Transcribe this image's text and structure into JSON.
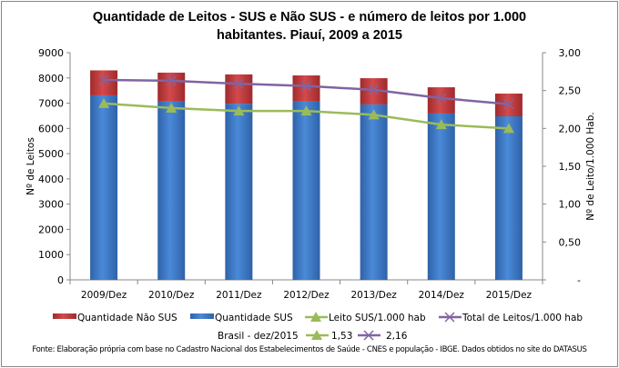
{
  "chart_data": {
    "type": "bar+line",
    "title": "Quantidade de Leitos - SUS e Não SUS - e número de leitos por 1.000 habitantes. Piauí, 2009 a 2015",
    "title_lines": [
      "Quantidade de Leitos - SUS e Não SUS - e número de leitos por 1.000",
      "habitantes. Piauí, 2009 a 2015"
    ],
    "categories": [
      "2009/Dez",
      "2010/Dez",
      "2011/Dez",
      "2012/Dez",
      "2013/Dez",
      "2014/Dez",
      "2015/Dez"
    ],
    "ylabel": "Nº de Leitos",
    "y2label": "Nº de Leito/1.000 Hab.",
    "ylim": [
      0,
      9000
    ],
    "y_ticks": [
      "0",
      "1000",
      "2000",
      "3000",
      "4000",
      "5000",
      "6000",
      "7000",
      "8000",
      "9000"
    ],
    "y2lim": [
      0,
      3
    ],
    "y2_ticks": [
      "-",
      "0,50",
      "1,00",
      "1,50",
      "2,00",
      "2,50",
      "3,00"
    ],
    "grid": false,
    "legend_position": "bottom",
    "series": [
      {
        "name": "Quantidade SUS",
        "type": "stacked-bar",
        "axis": "left",
        "color": "#3a78c9",
        "values": [
          7310,
          7060,
          6980,
          7060,
          6950,
          6590,
          6480
        ]
      },
      {
        "name": "Quantidade Não SUS",
        "type": "stacked-bar",
        "axis": "left",
        "color": "#c0393b",
        "values": [
          990,
          1150,
          1160,
          1040,
          1040,
          1040,
          900
        ]
      },
      {
        "name": "Leito SUS/1.000 hab",
        "type": "line",
        "marker": "triangle",
        "axis": "right",
        "color": "#9bbb59",
        "values": [
          2.33,
          2.27,
          2.23,
          2.23,
          2.18,
          2.05,
          2.0
        ]
      },
      {
        "name": "Total de Leitos/1.000 hab",
        "type": "line",
        "marker": "x",
        "axis": "right",
        "color": "#8064a2",
        "values": [
          2.64,
          2.63,
          2.59,
          2.56,
          2.51,
          2.4,
          2.32
        ]
      }
    ],
    "legend_order": [
      "Quantidade Não SUS",
      "Quantidade SUS",
      "Leito SUS/1.000 hab",
      "Total de Leitos/1.000 hab"
    ],
    "brasil_label": "Brasil -  dez/2015",
    "brasil_sus": "1,53",
    "brasil_total": "2,16",
    "source": "Fonte: Elaboração própria com base no  Cadastro Nacional dos Estabelecimentos de Saúde - CNES e população - IBGE. Dados obtidos no site do DATASUS"
  }
}
